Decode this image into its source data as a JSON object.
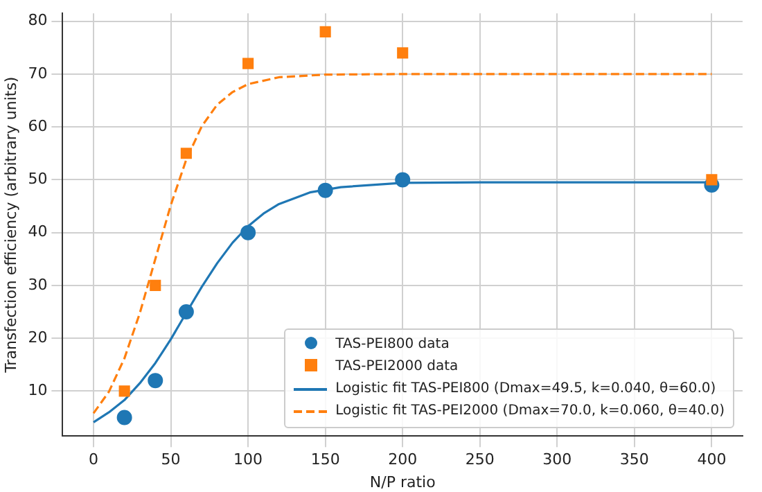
{
  "chart_data": {
    "type": "scatter",
    "xlabel": "N/P ratio",
    "ylabel": "Transfection efficiency (arbitrary units)",
    "xlim": [
      -20,
      420
    ],
    "xticks": [
      0,
      50,
      100,
      150,
      200,
      250,
      300,
      350,
      400
    ],
    "ylim": [
      1.5,
      81.5
    ],
    "yticks": [
      10,
      20,
      30,
      40,
      50,
      60,
      70,
      80
    ],
    "grid": true,
    "legend": "bottom right",
    "series": [
      {
        "name": "TAS-PEI800 data",
        "type": "scatter",
        "marker": "circle",
        "color": "#1f77b4",
        "x": [
          20,
          40,
          60,
          100,
          150,
          200,
          400
        ],
        "values": [
          5,
          12,
          25,
          40,
          48,
          50,
          49
        ]
      },
      {
        "name": "TAS-PEI2000 data",
        "type": "scatter",
        "marker": "square",
        "color": "#ff7f0e",
        "x": [
          20,
          40,
          60,
          100,
          150,
          200,
          400
        ],
        "values": [
          10,
          30,
          55,
          72,
          78,
          74,
          50
        ]
      },
      {
        "name": "Logistic fit TAS-PEI800 (Dmax=49.5, k=0.040, θ=60.0)",
        "type": "line",
        "line_style": "solid",
        "marker": "none",
        "color": "#1f77b4",
        "x": [
          0,
          10,
          20,
          30,
          40,
          50,
          60,
          70,
          80,
          90,
          100,
          110,
          120,
          140,
          160,
          200,
          250,
          300,
          400
        ],
        "values": [
          4.1,
          6.0,
          8.3,
          11.5,
          15.3,
          19.8,
          24.8,
          29.7,
          34.2,
          38.1,
          41.2,
          43.6,
          45.4,
          47.6,
          48.6,
          49.4,
          49.5,
          49.5,
          49.5
        ]
      },
      {
        "name": "Logistic fit TAS-PEI2000 (Dmax=70.0, k=0.060, θ=40.0)",
        "type": "line",
        "line_style": "dashed",
        "marker": "none",
        "color": "#ff7f0e",
        "x": [
          0,
          10,
          20,
          30,
          40,
          50,
          60,
          70,
          80,
          90,
          100,
          120,
          150,
          200,
          250,
          300,
          400
        ],
        "values": [
          5.8,
          9.9,
          16.2,
          24.8,
          35,
          45.2,
          53.8,
          60.1,
          64.2,
          66.6,
          68.1,
          69.4,
          69.9,
          70,
          70,
          70,
          70
        ]
      }
    ]
  }
}
